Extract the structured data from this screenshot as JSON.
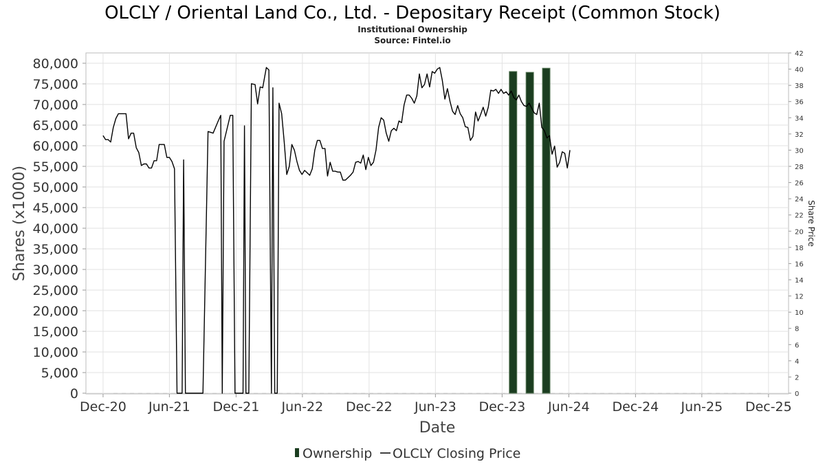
{
  "chart_data": {
    "type": "bar",
    "title": "OLCLY / Oriental Land Co., Ltd. - Depositary Receipt (Common Stock)",
    "subtitle_line1": "Institutional Ownership",
    "subtitle_line2": "Source: Fintel.io",
    "xlabel": "Date",
    "ylabel": "Shares (x1000)",
    "y2label": "Share Price",
    "ylim": [
      0,
      82000
    ],
    "y2lim": [
      0,
      42
    ],
    "xlim": [
      "2020-10-15",
      "2026-01-25"
    ],
    "x_ticks": [
      {
        "date": "2020-12-01",
        "label": "Dec-20"
      },
      {
        "date": "2021-06-01",
        "label": "Jun-21"
      },
      {
        "date": "2021-12-01",
        "label": "Dec-21"
      },
      {
        "date": "2022-06-01",
        "label": "Jun-22"
      },
      {
        "date": "2022-12-01",
        "label": "Dec-22"
      },
      {
        "date": "2023-06-01",
        "label": "Jun-23"
      },
      {
        "date": "2023-12-01",
        "label": "Dec-23"
      },
      {
        "date": "2024-06-01",
        "label": "Jun-24"
      },
      {
        "date": "2024-12-01",
        "label": "Dec-24"
      },
      {
        "date": "2025-06-01",
        "label": "Jun-25"
      },
      {
        "date": "2025-12-01",
        "label": "Dec-25"
      }
    ],
    "y_ticks": [
      "0",
      "5,000",
      "10,000",
      "15,000",
      "20,000",
      "25,000",
      "30,000",
      "35,000",
      "40,000",
      "45,000",
      "50,000",
      "55,000",
      "60,000",
      "65,000",
      "70,000",
      "75,000",
      "80,000"
    ],
    "y_tick_values": [
      0,
      5000,
      10000,
      15000,
      20000,
      25000,
      30000,
      35000,
      40000,
      45000,
      50000,
      55000,
      60000,
      65000,
      70000,
      75000,
      80000
    ],
    "y2_ticks": [
      "0",
      "2",
      "4",
      "6",
      "8",
      "10",
      "12",
      "14",
      "16",
      "18",
      "20",
      "22",
      "24",
      "26",
      "28",
      "30",
      "32",
      "34",
      "36",
      "38",
      "40",
      "42"
    ],
    "y2_tick_values": [
      0,
      2,
      4,
      6,
      8,
      10,
      12,
      14,
      16,
      18,
      20,
      22,
      24,
      26,
      28,
      30,
      32,
      34,
      36,
      38,
      40,
      42
    ],
    "grid": true,
    "legend_position": "bottom",
    "colors": {
      "ownership": "#1b3d20",
      "ownership_edge": "#5a7a5a",
      "price": "#000000",
      "grid": "#e2e2e2"
    },
    "series": [
      {
        "name": "Ownership",
        "type": "bar",
        "points": [
          {
            "date": "2023-12-31",
            "value": 78000
          },
          {
            "date": "2024-02-15",
            "value": 77800
          },
          {
            "date": "2024-03-31",
            "value": 78800
          }
        ]
      },
      {
        "name": "OLCLY Closing Price",
        "type": "line",
        "axis": "right",
        "points": [
          [
            "2020-12-01",
            31.8
          ],
          [
            "2020-12-08",
            31.3
          ],
          [
            "2020-12-15",
            31.3
          ],
          [
            "2020-12-22",
            31.0
          ],
          [
            "2020-12-29",
            32.8
          ],
          [
            "2021-01-05",
            33.9
          ],
          [
            "2021-01-12",
            34.5
          ],
          [
            "2021-01-19",
            34.5
          ],
          [
            "2021-01-26",
            34.5
          ],
          [
            "2021-02-02",
            34.5
          ],
          [
            "2021-02-09",
            31.4
          ],
          [
            "2021-02-16",
            32.1
          ],
          [
            "2021-02-23",
            32.1
          ],
          [
            "2021-03-02",
            30.3
          ],
          [
            "2021-03-09",
            29.7
          ],
          [
            "2021-03-16",
            28.1
          ],
          [
            "2021-03-23",
            28.3
          ],
          [
            "2021-03-30",
            28.3
          ],
          [
            "2021-04-06",
            27.8
          ],
          [
            "2021-04-13",
            27.8
          ],
          [
            "2021-04-20",
            28.7
          ],
          [
            "2021-04-27",
            28.7
          ],
          [
            "2021-05-04",
            30.7
          ],
          [
            "2021-05-11",
            30.7
          ],
          [
            "2021-05-18",
            30.7
          ],
          [
            "2021-05-25",
            29.1
          ],
          [
            "2021-06-01",
            29.1
          ],
          [
            "2021-06-08",
            28.6
          ],
          [
            "2021-06-15",
            27.7
          ],
          [
            "2021-06-22",
            0
          ],
          [
            "2021-07-06",
            0
          ],
          [
            "2021-07-10",
            28.8
          ],
          [
            "2021-07-15",
            0
          ],
          [
            "2021-09-01",
            0
          ],
          [
            "2021-09-15",
            32.3
          ],
          [
            "2021-09-29",
            32.1
          ],
          [
            "2021-10-13",
            33.6
          ],
          [
            "2021-10-20",
            34.3
          ],
          [
            "2021-10-24",
            0
          ],
          [
            "2021-10-29",
            31.1
          ],
          [
            "2021-11-15",
            34.3
          ],
          [
            "2021-11-22",
            34.3
          ],
          [
            "2021-11-28",
            0
          ],
          [
            "2021-12-20",
            0
          ],
          [
            "2021-12-24",
            33.0
          ],
          [
            "2021-12-28",
            0
          ],
          [
            "2022-01-05",
            0
          ],
          [
            "2022-01-12",
            38.2
          ],
          [
            "2022-01-22",
            38.1
          ],
          [
            "2022-01-29",
            35.7
          ],
          [
            "2022-02-05",
            37.8
          ],
          [
            "2022-02-12",
            37.7
          ],
          [
            "2022-02-22",
            40.2
          ],
          [
            "2022-03-01",
            39.9
          ],
          [
            "2022-03-08",
            0
          ],
          [
            "2022-03-12",
            37.7
          ],
          [
            "2022-03-17",
            0
          ],
          [
            "2022-03-24",
            0
          ],
          [
            "2022-03-29",
            35.8
          ],
          [
            "2022-04-05",
            34.5
          ],
          [
            "2022-04-12",
            31.0
          ],
          [
            "2022-04-19",
            27.0
          ],
          [
            "2022-04-26",
            28.0
          ],
          [
            "2022-05-03",
            30.7
          ],
          [
            "2022-05-10",
            30.0
          ],
          [
            "2022-05-17",
            28.6
          ],
          [
            "2022-05-24",
            27.5
          ],
          [
            "2022-05-31",
            27.0
          ],
          [
            "2022-06-07",
            27.5
          ],
          [
            "2022-06-14",
            27.2
          ],
          [
            "2022-06-21",
            26.9
          ],
          [
            "2022-06-28",
            27.7
          ],
          [
            "2022-07-05",
            30.0
          ],
          [
            "2022-07-12",
            31.2
          ],
          [
            "2022-07-19",
            31.2
          ],
          [
            "2022-07-26",
            30.2
          ],
          [
            "2022-08-02",
            30.2
          ],
          [
            "2022-08-09",
            26.8
          ],
          [
            "2022-08-16",
            28.5
          ],
          [
            "2022-08-23",
            27.4
          ],
          [
            "2022-08-30",
            27.4
          ],
          [
            "2022-09-06",
            27.3
          ],
          [
            "2022-09-13",
            27.3
          ],
          [
            "2022-09-20",
            26.3
          ],
          [
            "2022-09-27",
            26.3
          ],
          [
            "2022-10-04",
            26.6
          ],
          [
            "2022-10-11",
            26.9
          ],
          [
            "2022-10-18",
            27.3
          ],
          [
            "2022-10-25",
            28.5
          ],
          [
            "2022-11-01",
            28.6
          ],
          [
            "2022-11-08",
            28.4
          ],
          [
            "2022-11-15",
            29.4
          ],
          [
            "2022-11-22",
            27.6
          ],
          [
            "2022-11-29",
            29.1
          ],
          [
            "2022-12-06",
            28.1
          ],
          [
            "2022-12-13",
            28.5
          ],
          [
            "2022-12-20",
            30.0
          ],
          [
            "2022-12-27",
            32.8
          ],
          [
            "2023-01-03",
            34.0
          ],
          [
            "2023-01-10",
            33.7
          ],
          [
            "2023-01-17",
            32.1
          ],
          [
            "2023-01-24",
            31.1
          ],
          [
            "2023-01-31",
            32.4
          ],
          [
            "2023-02-07",
            32.7
          ],
          [
            "2023-02-14",
            32.4
          ],
          [
            "2023-02-21",
            33.6
          ],
          [
            "2023-02-28",
            33.4
          ],
          [
            "2023-03-07",
            35.6
          ],
          [
            "2023-03-14",
            36.8
          ],
          [
            "2023-03-21",
            36.8
          ],
          [
            "2023-03-28",
            36.4
          ],
          [
            "2023-04-04",
            35.8
          ],
          [
            "2023-04-11",
            36.7
          ],
          [
            "2023-04-18",
            39.4
          ],
          [
            "2023-04-25",
            37.7
          ],
          [
            "2023-05-02",
            38.1
          ],
          [
            "2023-05-09",
            39.4
          ],
          [
            "2023-05-16",
            37.8
          ],
          [
            "2023-05-23",
            39.7
          ],
          [
            "2023-05-30",
            39.5
          ],
          [
            "2023-06-06",
            40.0
          ],
          [
            "2023-06-13",
            40.2
          ],
          [
            "2023-06-20",
            38.6
          ],
          [
            "2023-06-27",
            36.3
          ],
          [
            "2023-07-04",
            37.6
          ],
          [
            "2023-07-11",
            36.0
          ],
          [
            "2023-07-18",
            34.8
          ],
          [
            "2023-07-25",
            34.4
          ],
          [
            "2023-08-01",
            35.5
          ],
          [
            "2023-08-08",
            34.5
          ],
          [
            "2023-08-15",
            34.0
          ],
          [
            "2023-08-22",
            32.9
          ],
          [
            "2023-08-29",
            32.8
          ],
          [
            "2023-09-05",
            31.2
          ],
          [
            "2023-09-12",
            31.7
          ],
          [
            "2023-09-19",
            34.7
          ],
          [
            "2023-09-26",
            33.6
          ],
          [
            "2023-10-03",
            34.4
          ],
          [
            "2023-10-10",
            35.3
          ],
          [
            "2023-10-17",
            34.2
          ],
          [
            "2023-10-24",
            35.3
          ],
          [
            "2023-10-31",
            37.4
          ],
          [
            "2023-11-07",
            37.3
          ],
          [
            "2023-11-14",
            37.5
          ],
          [
            "2023-11-21",
            37.0
          ],
          [
            "2023-11-28",
            37.5
          ],
          [
            "2023-12-05",
            37.0
          ],
          [
            "2023-12-12",
            37.2
          ],
          [
            "2023-12-19",
            36.8
          ],
          [
            "2023-12-26",
            37.3
          ],
          [
            "2024-01-02",
            36.5
          ],
          [
            "2024-01-09",
            36.2
          ],
          [
            "2024-01-16",
            36.8
          ],
          [
            "2024-01-23",
            36.0
          ],
          [
            "2024-01-30",
            35.5
          ],
          [
            "2024-02-06",
            35.4
          ],
          [
            "2024-02-13",
            35.8
          ],
          [
            "2024-02-20",
            35.2
          ],
          [
            "2024-02-27",
            34.6
          ],
          [
            "2024-03-05",
            34.4
          ],
          [
            "2024-03-12",
            35.8
          ],
          [
            "2024-03-19",
            32.8
          ],
          [
            "2024-03-26",
            32.4
          ],
          [
            "2024-04-02",
            31.5
          ],
          [
            "2024-04-09",
            31.8
          ],
          [
            "2024-04-16",
            29.5
          ],
          [
            "2024-04-23",
            30.5
          ],
          [
            "2024-04-30",
            27.9
          ],
          [
            "2024-05-07",
            28.5
          ],
          [
            "2024-05-14",
            29.8
          ],
          [
            "2024-05-21",
            29.6
          ],
          [
            "2024-05-28",
            27.8
          ],
          [
            "2024-06-04",
            30.0
          ]
        ]
      }
    ]
  }
}
